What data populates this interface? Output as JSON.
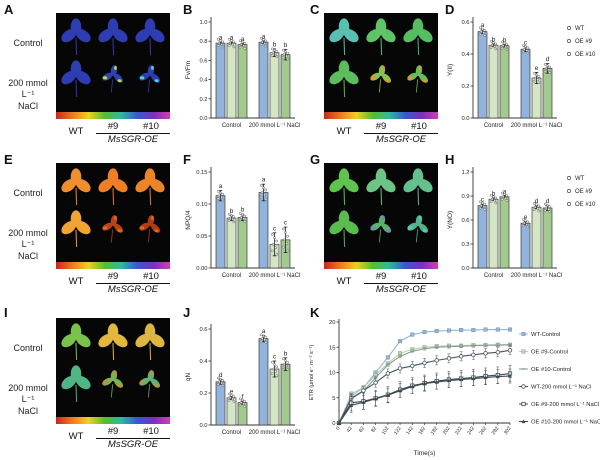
{
  "panels": {
    "A": "A",
    "B": "B",
    "C": "C",
    "D": "D",
    "E": "E",
    "F": "F",
    "G": "G",
    "H": "H",
    "I": "I",
    "J": "J",
    "K": "K"
  },
  "leaf_common": {
    "control_label": "Control",
    "nacl_line1": "200 mmol L⁻¹",
    "nacl_line2": "NaCl",
    "wt_label": "WT",
    "line9_label": "#9",
    "line10_label": "#10",
    "group_label": "MsSGR-OE"
  },
  "colors": {
    "wt_bar": "#92b4dc",
    "oe9_bar": "#d4e6c6",
    "oe10_bar": "#a3ca8e",
    "bar_stroke": "#3a3a3a",
    "axis": "#333333",
    "colorbar_gradient": [
      "#c82818",
      "#f07820",
      "#f0d020",
      "#55bd30",
      "#2fb8a0",
      "#3858d0",
      "#7c2fc0",
      "#d040b0"
    ]
  },
  "leaf_panels": [
    {
      "label": "A",
      "show_row_labels": true,
      "control": [
        {
          "base": "#2e3db2"
        },
        {
          "base": "#2e3db2"
        },
        {
          "base": "#2e3db2"
        }
      ],
      "nacl": [
        {
          "base": "#2e3db2"
        },
        {
          "base": "#3040ae",
          "accent": "#c8e04a",
          "damaged": true
        },
        {
          "base": "#2e3db2",
          "accent": "#59d8d8",
          "damaged": true
        }
      ]
    },
    {
      "label": "C",
      "show_row_labels": false,
      "control": [
        {
          "base": "#58c0b2"
        },
        {
          "base": "#5fc468"
        },
        {
          "base": "#55bd62"
        }
      ],
      "nacl": [
        {
          "base": "#5cbd5e"
        },
        {
          "base": "#86c44e",
          "accent": "#f09030",
          "damaged": true
        },
        {
          "base": "#68bd58",
          "accent": "#f09030",
          "damaged": true
        }
      ]
    },
    {
      "label": "E",
      "show_row_labels": true,
      "control": [
        {
          "base": "#ef8e2e"
        },
        {
          "base": "#ee7f26"
        },
        {
          "base": "#ee8428"
        }
      ],
      "nacl": [
        {
          "base": "#efa433"
        },
        {
          "base": "#b64418",
          "accent": "#e86a20",
          "damaged": true
        },
        {
          "base": "#ad3c12",
          "accent": "#e86a20",
          "damaged": true
        }
      ]
    },
    {
      "label": "G",
      "show_row_labels": false,
      "control": [
        {
          "base": "#5ec44e"
        },
        {
          "base": "#6cc486"
        },
        {
          "base": "#64c08c"
        }
      ],
      "nacl": [
        {
          "base": "#5abb4e"
        },
        {
          "base": "#58b468",
          "accent": "#7a7fd0",
          "damaged": true
        },
        {
          "base": "#52b486",
          "accent": "#55c8d8",
          "damaged": true
        }
      ]
    },
    {
      "label": "I",
      "show_row_labels": true,
      "control": [
        {
          "base": "#79c348"
        },
        {
          "base": "#e3b83c"
        },
        {
          "base": "#ddb542"
        }
      ],
      "nacl": [
        {
          "base": "#4fb585"
        },
        {
          "base": "#76b455",
          "accent": "#e5832f",
          "damaged": true
        },
        {
          "base": "#62b276",
          "accent": "#e5832f",
          "damaged": true
        }
      ]
    }
  ],
  "chart_data": [
    {
      "id": "B",
      "type": "bar",
      "ylabel": "Fv/Fm",
      "ylim": [
        0,
        1.0
      ],
      "yticks": [
        "0.0",
        "0.2",
        "0.4",
        "0.6",
        "0.8",
        "1.0"
      ],
      "categories": [
        "Control",
        "200 mmol L⁻¹ NaCl"
      ],
      "legend": false,
      "series": [
        {
          "name": "WT",
          "values": [
            0.78,
            0.79
          ],
          "errors": [
            0.01,
            0.012
          ],
          "letters": [
            "a",
            "a"
          ]
        },
        {
          "name": "OE #9",
          "values": [
            0.78,
            0.68
          ],
          "errors": [
            0.01,
            0.04
          ],
          "letters": [
            "a",
            "b"
          ]
        },
        {
          "name": "OE #10",
          "values": [
            0.765,
            0.66
          ],
          "errors": [
            0.01,
            0.055
          ],
          "letters": [
            "a",
            "b"
          ]
        }
      ]
    },
    {
      "id": "D",
      "type": "bar",
      "ylabel": "Y(II)",
      "ylim": [
        0,
        0.6
      ],
      "yticks": [
        "0.0",
        "0.2",
        "0.4",
        "0.6"
      ],
      "categories": [
        "Control",
        "200 mmol L⁻¹ NaCl"
      ],
      "legend": true,
      "legend_items": [
        "WT",
        "OE #9",
        "OE #10"
      ],
      "series": [
        {
          "name": "WT",
          "values": [
            0.54,
            0.43
          ],
          "errors": [
            0.012,
            0.015
          ],
          "letters": [
            "a",
            "c"
          ]
        },
        {
          "name": "OE #9",
          "values": [
            0.455,
            0.25
          ],
          "errors": [
            0.008,
            0.035
          ],
          "letters": [
            "b",
            "e"
          ]
        },
        {
          "name": "OE #10",
          "values": [
            0.452,
            0.31
          ],
          "errors": [
            0.008,
            0.03
          ],
          "letters": [
            "b",
            "d"
          ]
        }
      ]
    },
    {
      "id": "F",
      "type": "bar",
      "ylabel": "NPQ/4",
      "ylim": [
        0,
        0.15
      ],
      "yticks": [
        "0.00",
        "0.05",
        "0.10",
        "0.15"
      ],
      "categories": [
        "Control",
        "200 mmol L⁻¹ NaCl"
      ],
      "legend": false,
      "series": [
        {
          "name": "WT",
          "values": [
            0.113,
            0.118
          ],
          "errors": [
            0.008,
            0.013
          ],
          "letters": [
            "a",
            "a"
          ]
        },
        {
          "name": "OE #9",
          "values": [
            0.078,
            0.037
          ],
          "errors": [
            0.004,
            0.018
          ],
          "letters": [
            "b",
            "c"
          ]
        },
        {
          "name": "OE #10",
          "values": [
            0.079,
            0.044
          ],
          "errors": [
            0.005,
            0.02
          ],
          "letters": [
            "b",
            "c"
          ]
        }
      ]
    },
    {
      "id": "H",
      "type": "bar",
      "ylabel": "Y(NO)",
      "ylim": [
        0,
        1.2
      ],
      "yticks": [
        "0.0",
        "0.3",
        "0.6",
        "0.9",
        "1.2"
      ],
      "categories": [
        "Control",
        "200 mmol L⁻¹ NaCl"
      ],
      "legend": true,
      "legend_items": [
        "WT",
        "OE #9",
        "OE #10"
      ],
      "series": [
        {
          "name": "WT",
          "values": [
            0.78,
            0.56
          ],
          "errors": [
            0.02,
            0.02
          ],
          "letters": [
            "c",
            "e"
          ]
        },
        {
          "name": "OE #9",
          "values": [
            0.86,
            0.76
          ],
          "errors": [
            0.015,
            0.02
          ],
          "letters": [
            "b",
            "d"
          ]
        },
        {
          "name": "OE #10",
          "values": [
            0.89,
            0.75
          ],
          "errors": [
            0.012,
            0.03
          ],
          "letters": [
            "a",
            "d"
          ]
        }
      ]
    },
    {
      "id": "J",
      "type": "bar",
      "ylabel": "qN",
      "ylim": [
        0,
        0.6
      ],
      "yticks": [
        "0.0",
        "0.2",
        "0.4",
        "0.6"
      ],
      "categories": [
        "Control",
        "200 mmol L⁻¹ NaCl"
      ],
      "legend": false,
      "series": [
        {
          "name": "WT",
          "values": [
            0.27,
            0.54
          ],
          "errors": [
            0.015,
            0.02
          ],
          "letters": [
            "d",
            "a"
          ]
        },
        {
          "name": "OE #9",
          "values": [
            0.17,
            0.35
          ],
          "errors": [
            0.01,
            0.05
          ],
          "letters": [
            "e",
            "c"
          ]
        },
        {
          "name": "OE #10",
          "values": [
            0.14,
            0.38
          ],
          "errors": [
            0.01,
            0.04
          ],
          "letters": [
            "f",
            "b"
          ]
        }
      ]
    },
    {
      "id": "K",
      "type": "line",
      "ylabel": "ETR (μmol e⁻ m⁻² s⁻¹)",
      "xlabel": "Time(s)",
      "ylim": [
        0,
        20
      ],
      "yticks": [
        "0",
        "5",
        "10",
        "15",
        "20"
      ],
      "x": [
        "0",
        "42",
        "62",
        "82",
        "102",
        "122",
        "142",
        "162",
        "182",
        "202",
        "222",
        "242",
        "262",
        "282",
        "302"
      ],
      "series": [
        {
          "name": "WT-Control",
          "color": "#8fb8d8",
          "marker": "square-filled",
          "err": 0.3,
          "values": [
            0,
            5.3,
            7.0,
            10.0,
            13.0,
            16.2,
            17.5,
            18.0,
            18.2,
            18.3,
            18.4,
            18.4,
            18.5,
            18.5,
            18.5
          ]
        },
        {
          "name": "OE #9-Control",
          "color": "#b7d7b0",
          "marker": "square-filled",
          "err": 0.3,
          "values": [
            0,
            5.8,
            7.0,
            9.5,
            11.8,
            13.8,
            14.6,
            15.0,
            15.2,
            15.3,
            15.3,
            15.4,
            15.4,
            15.5,
            15.5
          ]
        },
        {
          "name": "OE #10-Control",
          "color": "#8a9a90",
          "marker": "dash",
          "err": 0.3,
          "values": [
            0,
            4.8,
            6.3,
            9.0,
            11.5,
            13.2,
            14.2,
            14.7,
            15.0,
            15.1,
            15.2,
            15.3,
            15.4,
            15.4,
            15.5
          ]
        },
        {
          "name": "WT-200 mmol L⁻¹ NaCl",
          "color": "#46545f",
          "marker": "circle-open",
          "err": 0.9,
          "values": [
            0,
            4.9,
            6.4,
            8.0,
            9.8,
            10.8,
            11.3,
            11.9,
            12.4,
            12.8,
            13.2,
            13.5,
            13.8,
            14.0,
            14.4
          ]
        },
        {
          "name": "OE #9-200 mmol L⁻¹ NaCl",
          "color": "#3d4a50",
          "marker": "square-open",
          "err": 1.6,
          "values": [
            0,
            4.0,
            4.3,
            4.9,
            5.6,
            6.6,
            7.4,
            7.9,
            8.3,
            8.6,
            8.8,
            9.0,
            9.3,
            9.5,
            9.8
          ]
        },
        {
          "name": "OE #10-200 mmol L⁻¹ NaCl",
          "color": "#3d4a50",
          "marker": "triangle-filled",
          "err": 1.4,
          "values": [
            0,
            3.5,
            4.1,
            4.8,
            5.5,
            6.4,
            7.2,
            7.8,
            8.1,
            8.4,
            8.6,
            8.8,
            9.0,
            9.2,
            9.3
          ]
        }
      ]
    }
  ]
}
